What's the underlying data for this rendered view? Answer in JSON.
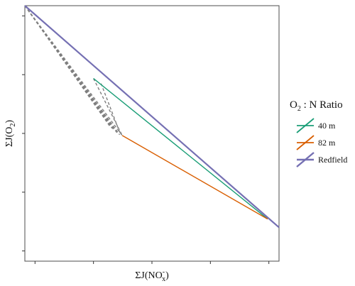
{
  "chart_data": {
    "type": "line",
    "xlabel_parts": {
      "prefix": "ΣJ(NO",
      "sup": "-",
      "sub": "x",
      "suffix": ")"
    },
    "ylabel_parts": {
      "prefix": "ΣJ(O",
      "sub": "2",
      "suffix": ")"
    },
    "xlim": [
      0,
      1
    ],
    "ylim": [
      -1,
      0
    ],
    "x_ticks": [
      0.04,
      0.27,
      0.5,
      0.73,
      0.96
    ],
    "y_ticks": [
      -0.04,
      -0.27,
      -0.5,
      -0.73,
      -0.96
    ],
    "grid": false,
    "legend": {
      "title_parts": {
        "prefix": "O",
        "sub": "2",
        "suffix": " : N Ratio"
      },
      "placement": "right",
      "entries": [
        "40 m",
        "82 m",
        "Redfield"
      ]
    },
    "series": [
      {
        "name": "40 m",
        "color": "#1b9e77",
        "style": "solid",
        "points": [
          [
            0.27,
            -0.285
          ],
          [
            0.955,
            -0.835
          ]
        ]
      },
      {
        "name": "82 m",
        "color": "#d95f02",
        "style": "solid",
        "points": [
          [
            0.383,
            -0.508
          ],
          [
            0.955,
            -0.835
          ]
        ]
      },
      {
        "name": "Redfield",
        "color": "#7570b3",
        "style": "solid",
        "points": [
          [
            0.0,
            0.0
          ],
          [
            1.0,
            -0.868
          ]
        ]
      }
    ],
    "guide_lines": {
      "color": "#7f7f7f",
      "style": "dashed",
      "segments": [
        [
          [
            0.0,
            0.0
          ],
          [
            0.383,
            -0.508
          ]
        ],
        [
          [
            0.0,
            0.0
          ],
          [
            0.373,
            -0.505
          ]
        ],
        [
          [
            0.0,
            0.0
          ],
          [
            0.363,
            -0.498
          ]
        ],
        [
          [
            0.0,
            0.0
          ],
          [
            0.353,
            -0.49
          ]
        ],
        [
          [
            0.0,
            0.0
          ],
          [
            0.343,
            -0.48
          ]
        ],
        [
          [
            0.0,
            0.0
          ],
          [
            0.333,
            -0.47
          ]
        ],
        [
          [
            0.27,
            -0.285
          ],
          [
            0.383,
            -0.508
          ]
        ],
        [
          [
            0.3,
            -0.305
          ],
          [
            0.375,
            -0.5
          ]
        ]
      ]
    }
  }
}
